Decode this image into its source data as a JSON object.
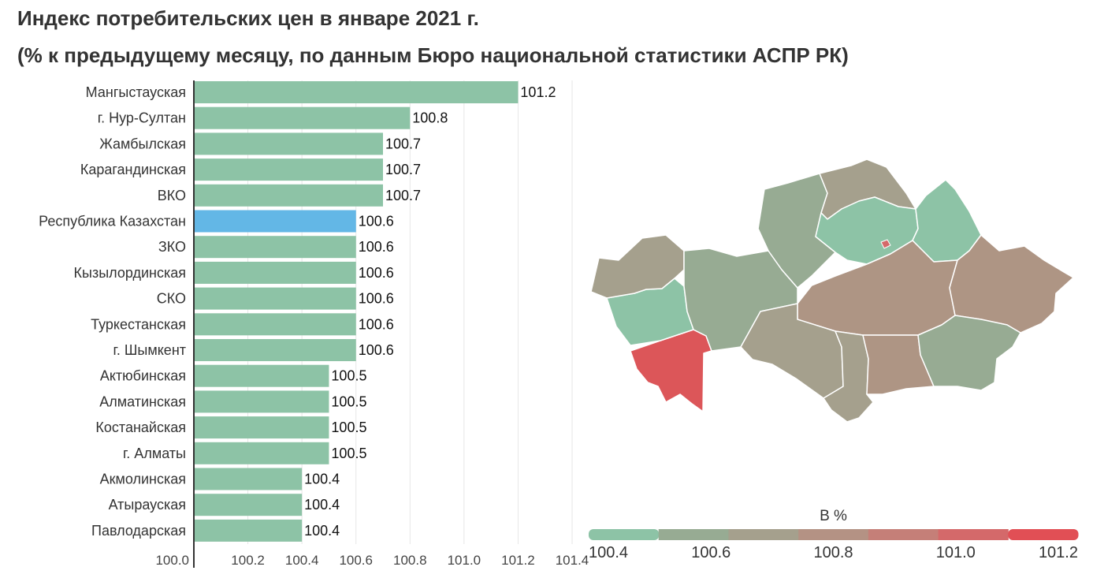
{
  "title": "Индекс потребительских цен в январе 2021 г.",
  "subtitle": "(% к предыдущему месяцу, по данным Бюро национальной статистики АСПР РК)",
  "chart_data": [
    {
      "type": "bar",
      "orientation": "horizontal",
      "categories": [
        "Мангыстауская",
        "г. Нур-Султан",
        "Жамбылская",
        "Карагандинская",
        "ВКО",
        "Республика Казахстан",
        "ЗКО",
        "Кызылординская",
        "СКО",
        "Туркестанская",
        "г. Шымкент",
        "Актюбинская",
        "Алматинская",
        "Костанайская",
        "г. Алматы",
        "Акмолинская",
        "Атырауская",
        "Павлодарская"
      ],
      "values": [
        101.2,
        100.8,
        100.7,
        100.7,
        100.7,
        100.6,
        100.6,
        100.6,
        100.6,
        100.6,
        100.6,
        100.5,
        100.5,
        100.5,
        100.5,
        100.4,
        100.4,
        100.4
      ],
      "value_labels": [
        "101.2",
        "100.8",
        "100.7",
        "100.7",
        "100.7",
        "100.6",
        "100.6",
        "100.6",
        "100.6",
        "100.6",
        "100.6",
        "100.5",
        "100.5",
        "100.5",
        "100.5",
        "100.4",
        "100.4",
        "100.4"
      ],
      "highlight": "Республика Казахстан",
      "xlim": [
        100.0,
        101.4
      ],
      "xticks": [
        "100.0",
        "100.2",
        "100.4",
        "100.6",
        "100.8",
        "101.0",
        "101.2",
        "101.4"
      ],
      "grid": true,
      "colors": {
        "bar": "#8dc3a6",
        "highlight": "#63b7e6"
      }
    },
    {
      "type": "map",
      "legend_title": "В %",
      "legend_ticks": [
        "100.4",
        "100.6",
        "100.8",
        "101.0",
        "101.2"
      ],
      "legend_range": [
        100.4,
        101.2
      ],
      "legend_colors": [
        "#8dc3a6",
        "#97ab93",
        "#a5a08d",
        "#b49284",
        "#c57f78",
        "#d4696a",
        "#e14f55"
      ]
    }
  ]
}
